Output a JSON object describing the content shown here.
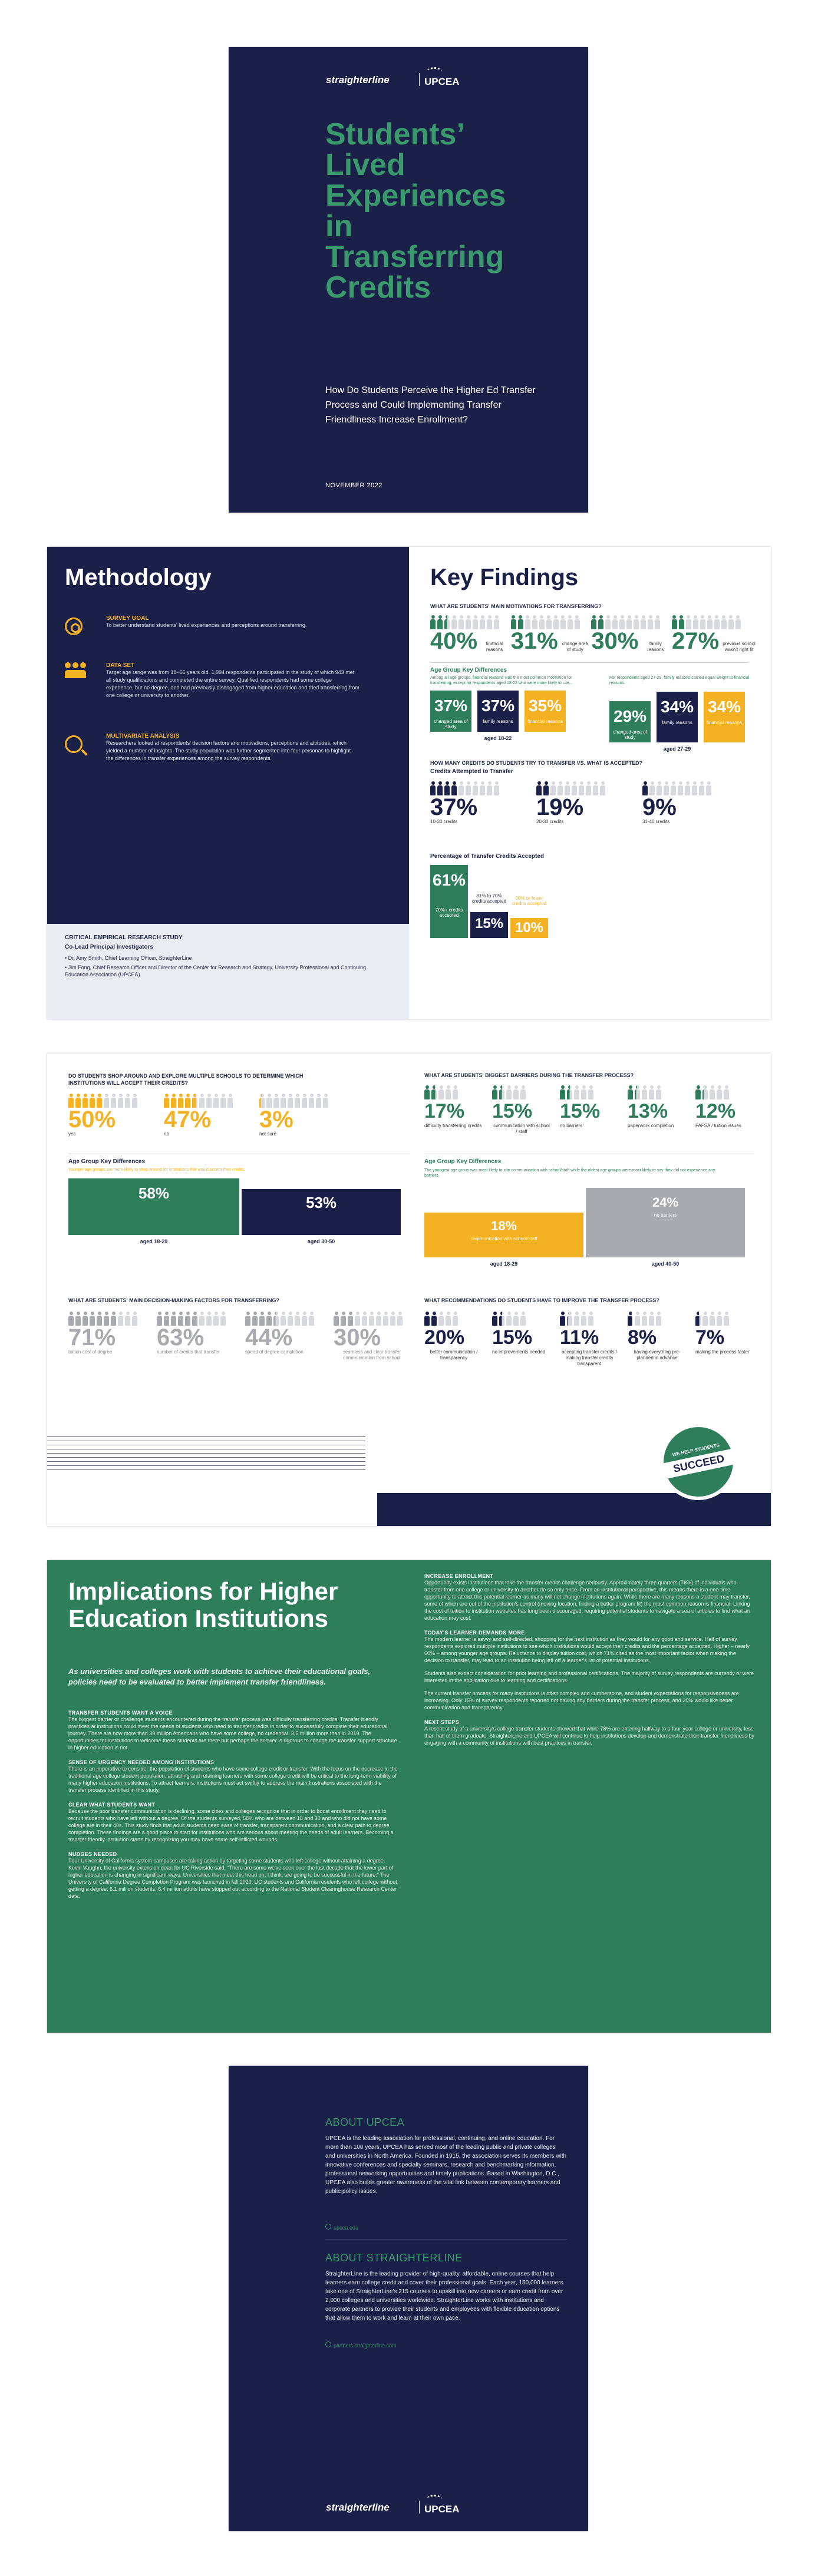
{
  "cover": {
    "logo_left": "straighterline",
    "logo_right": "UPCEA",
    "title_lines": [
      "Students’",
      "Lived",
      "Experiences",
      "in",
      "Transferring",
      "Credits"
    ],
    "subtitle": "How Do Students Perceive the Higher Ed Transfer Process and Could Implementing Transfer Friendliness Increase Enrollment?",
    "date": "NOVEMBER 2022"
  },
  "methodology": {
    "title": "Methodology",
    "survey_goal": {
      "heading": "SURVEY GOAL",
      "text": "To better understand students' lived experiences and perceptions around transferring."
    },
    "data_set": {
      "heading": "DATA SET",
      "text": "Target age range was from 18–55 years old. 1,994 respondents participated in the study of which 943 met all study qualifications and completed the entire survey. Qualified respondents had some college experience, but no degree, and had previously disengaged from higher education and tried transferring from one college or university to another."
    },
    "multivariate": {
      "heading": "MULTIVARIATE ANALYSIS",
      "text": "Researchers looked at respondents' decision factors and motivations, perceptions and attitudes, which yielded a number of insights. The study population was further segmented into four personas to highlight the differences in transfer experiences among the survey respondents."
    },
    "study_heading": "CRITICAL EMPIRICAL RESEARCH STUDY",
    "investigators_heading": "Co-Lead Principal Investigators",
    "investigators": [
      "Dr. Amy Smith, Chief Learning Officer, StraighterLine",
      "Jim Fong, Chief Research Officer and Director of the Center for Research and Strategy, University Professional and Continuing Education Association (UPCEA)"
    ]
  },
  "key_findings": {
    "title": "Key Findings",
    "motivations": {
      "heading": "WHAT ARE STUDENTS' MAIN MOTIVATIONS FOR TRANSFERRING?",
      "items": [
        {
          "pct": "40%",
          "label": "financial reasons"
        },
        {
          "pct": "31%",
          "label": "change area of study"
        },
        {
          "pct": "30%",
          "label": "family reasons"
        },
        {
          "pct": "27%",
          "label": "previous school wasn't right fit"
        }
      ]
    },
    "age_diff": {
      "heading": "Age Group Key Differences",
      "note_left": "Among all age groups, financial reasons was the most common motivation for transferring, except for respondents aged 18-22 who were more likely to cite...",
      "note_right": "For respondents aged 27-29, family reasons carried equal weight to financial reasons.",
      "left": {
        "group": "aged 18-22",
        "boxes": [
          {
            "pct": "37%",
            "label": "changed area of study"
          },
          {
            "pct": "37%",
            "label": "family reasons"
          },
          {
            "pct": "35%",
            "label": "financial reasons"
          }
        ]
      },
      "right": {
        "group": "aged 27-29",
        "boxes": [
          {
            "pct": "29%",
            "label": "changed area of study"
          },
          {
            "pct": "34%",
            "label": "family reasons"
          },
          {
            "pct": "34%",
            "label": "financial reasons"
          }
        ]
      }
    },
    "credits": {
      "heading": "HOW MANY CREDITS DO STUDENTS TRY TO TRANSFER VS. WHAT IS ACCEPTED?",
      "sub": "Credits Attempted to Transfer",
      "items": [
        {
          "pct": "37%",
          "label": "10-20 credits"
        },
        {
          "pct": "19%",
          "label": "20-30 credits"
        },
        {
          "pct": "9%",
          "label": "31-40 credits"
        }
      ],
      "accepted_heading": "Percentage of Transfer Credits Accepted",
      "accepted": [
        {
          "pct": "61%",
          "label": "70%+ credits accepted"
        },
        {
          "pct": "15%",
          "label": "31% to 70% credits accepted"
        },
        {
          "pct": "10%",
          "label": "30% or fewer credits accepted"
        }
      ]
    }
  },
  "page3": {
    "shop": {
      "heading": "DO STUDENTS SHOP AROUND AND EXPLORE MULTIPLE SCHOOLS TO DETERMINE WHICH INSTITUTIONS WILL ACCEPT THEIR CREDITS?",
      "items": [
        {
          "pct": "50%",
          "label": "yes"
        },
        {
          "pct": "47%",
          "label": "no"
        },
        {
          "pct": "3%",
          "label": "not sure"
        }
      ],
      "age_heading": "Age Group Key Differences",
      "age_note": "Younger age groups are more likely to shop around for institutions that would accept their credits.",
      "bars": [
        {
          "pct": "58%",
          "label": "aged 18-29"
        },
        {
          "pct": "53%",
          "label": "aged 30-50"
        }
      ]
    },
    "decision": {
      "heading": "WHAT ARE STUDENTS' MAIN DECISION-MAKING FACTORS FOR TRANSFERRING?",
      "items": [
        {
          "pct": "71%",
          "label": "tuition cost of degree"
        },
        {
          "pct": "63%",
          "label": "number of credits that transfer"
        },
        {
          "pct": "44%",
          "label": "speed of degree completion"
        },
        {
          "pct": "30%",
          "label": "seamless and clear transfer communication from school"
        }
      ]
    },
    "barriers": {
      "heading": "WHAT ARE STUDENTS' BIGGEST BARRIERS DURING THE TRANSFER PROCESS?",
      "items": [
        {
          "pct": "17%",
          "label": "difficulty transferring credits"
        },
        {
          "pct": "15%",
          "label": "communication with school / staff"
        },
        {
          "pct": "15%",
          "label": "no barriers"
        },
        {
          "pct": "13%",
          "label": "paperwork completion"
        },
        {
          "pct": "12%",
          "label": "FAFSA / tuition issues"
        }
      ],
      "age_heading": "Age Group Key Differences",
      "age_note": "The youngest age group was most likely to cite communication with school/staff while the oldest age groups were most likely to say they did not experience any barriers.",
      "bars": [
        {
          "pct": "18%",
          "label": "communication with school/staff",
          "group": "aged 18-29"
        },
        {
          "pct": "24%",
          "label": "no barriers",
          "group": "aged 40-50"
        }
      ]
    },
    "recommendations": {
      "heading": "WHAT RECOMMENDATIONS DO STUDENTS HAVE TO IMPROVE THE TRANSFER PROCESS?",
      "items": [
        {
          "pct": "20%",
          "label": "better communication / transparency"
        },
        {
          "pct": "15%",
          "label": "no improvements needed"
        },
        {
          "pct": "11%",
          "label": "accepting transfer credits / making transfer credits transparent"
        },
        {
          "pct": "8%",
          "label": "having everything pre-planned in advance"
        },
        {
          "pct": "7%",
          "label": "making the process faster"
        }
      ]
    },
    "badge": {
      "line1": "WE HELP STUDENTS",
      "line2": "SUCCEED"
    }
  },
  "implications": {
    "title": "Implications for Higher Education Institutions",
    "intro": "As universities and colleges work with students to achieve their educational goals, policies need to be evaluated to better implement transfer friendliness.",
    "left_sections": [
      {
        "heading": "TRANSFER STUDENTS WANT A VOICE",
        "text": "The biggest barrier or challenge students encountered during the transfer process was difficulty transferring credits. Transfer friendly practices at institutions could meet the needs of students who need to transfer credits in order to successfully complete their educational journey. There are now more than 39 million Americans who have some college, no credential. 3.5 million more than in 2019. The opportunities for institutions to welcome these students are there but perhaps the answer is rigorous to change the transfer support structure in higher education is not."
      },
      {
        "heading": "SENSE OF URGENCY NEEDED AMONG INSTITUTIONS",
        "text": "There is an imperative to consider the population of students who have some college credit or transfer. With the focus on the decrease in the traditional age college student population, attracting and retaining learners with some college credit will be critical to the long-term viability of many higher education institutions. To attract learners, institutions must act swiftly to address the main frustrations associated with the transfer process identified in this study."
      },
      {
        "heading": "CLEAR WHAT STUDENTS WANT",
        "text": "Because the poor transfer communication is declining, some cities and colleges recognize that in order to boost enrollment they need to recruit students who have left without a degree. Of the students surveyed, 58% who are between 18 and 30 and who did not have some college are in their 40s. This study finds that adult students need ease of transfer, transparent communication, and a clear path to degree completion. These findings are a good place to start for institutions who are serious about meeting the needs of adult learners. Becoming a transfer friendly institution starts by recognizing you may have some self-inflicted wounds."
      },
      {
        "heading": "NUDGES NEEDED",
        "text": "Four University of California system campuses are taking action by targeting some students who left college without attaining a degree. Kevin Vaughn, the university extension dean for UC Riverside said, “There are some we've seen over the last decade that the lower part of higher education is changing in significant ways. Universities that meet this head on, I think, are going to be successful in the future.” The University of California Degree Completion Program was launched in fall 2020. UC students and California residents who left college without getting a degree. 6.1 million students. 6.4 million adults have stopped out according to the National Student Clearinghouse Research Center data."
      }
    ],
    "right_sections": [
      {
        "heading": "INCREASE ENROLLMENT",
        "text": "Opportunity exists institutions that take the transfer credits challenge seriously. Approximately three quarters (78%) of individuals who transfer from one college or university to another do so only once. From an institutional perspective, this means there is a one-time opportunity to attract this potential learner as many will not change institutions again. While there are many reasons a student may transfer, some of which are out of the institution's control (moving location, finding a better program fit) the most common reason is financial. Linking the cost of tuition to institution websites has long been discouraged, requiring potential students to navigate a sea of articles to find what an education may cost."
      },
      {
        "heading": "TODAY'S LEARNER DEMANDS MORE",
        "text": "The modern learner is savvy and self-directed, shopping for the next institution as they would for any good and service. Half of survey respondents explored multiple institutions to see which institutions would accept their credits and the percentage accepted. Higher – nearly 60% – among younger age groups. Reluctance to display tuition cost, which 71% cited as the most important factor when making the decision to transfer, may lead to an institution being left off a learner's list of potential institutions."
      },
      {
        "heading": "",
        "text": "Students also expect consideration for prior learning and professional certifications. The majority of survey respondents are currently or were interested in the application due to learning and certifications."
      },
      {
        "heading": "",
        "text": "The current transfer process for many institutions is often complex and cumbersome, and student expectations for responsiveness are increasing. Only 15% of survey respondents reported not having any barriers during the transfer process, and 20% would like better communication and transparency."
      },
      {
        "heading": "NEXT STEPS",
        "text": "A recent study of a university's college transfer students showed that while 78% are entering halfway to a four-year college or university, less than half of them graduate. StraighterLine and UPCEA will continue to help institutions develop and demonstrate their transfer friendliness by engaging with a community of institutions with best practices in transfer."
      }
    ]
  },
  "back": {
    "about_upcea_heading": "ABOUT UPCEA",
    "about_upcea_text": "UPCEA is the leading association for professional, continuing, and online education. For more than 100 years, UPCEA has served most of the leading public and private colleges and universities in North America. Founded in 1915, the association serves its members with innovative conferences and specialty seminars, research and benchmarking information, professional networking opportunities and timely publications. Based in Washington, D.C., UPCEA also builds greater awareness of the vital link between contemporary learners and public policy issues.",
    "upcea_link": "upcea.edu",
    "about_sl_heading": "ABOUT STRAIGHTERLINE",
    "about_sl_text": "StraighterLine is the leading provider of high-quality, affordable, online courses that help learners earn college credit and cover their professional goals. Each year, 150,000 learners take one of StraighterLine's 215 courses to upskill into new careers or earn credit from over 2,000 colleges and universities worldwide. StraighterLine works with institutions and corporate partners to provide their students and employees with flexible education options that allow them to work and learn at their own pace.",
    "sl_link": "partners.straighterline.com",
    "logo_left": "straighterline",
    "logo_right": "UPCEA"
  },
  "colors": {
    "navy": "#1b2048",
    "green": "#2e7d5b",
    "gold": "#f4b223",
    "gray": "#a9aab0"
  }
}
